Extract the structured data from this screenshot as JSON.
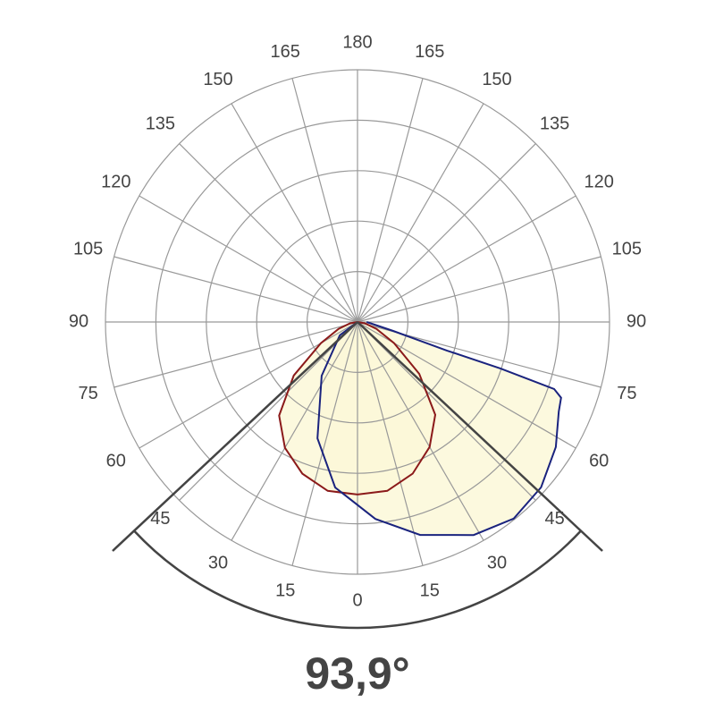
{
  "chart_data": {
    "type": "polar",
    "rlim": [
      0,
      5
    ],
    "rticks": [
      1,
      2,
      3,
      4,
      5
    ],
    "thetaticks": [
      0,
      15,
      30,
      45,
      60,
      75,
      90,
      105,
      120,
      135,
      150,
      165,
      180
    ],
    "grid": true,
    "fill_color": "#fbf8d8",
    "beam_angle": {
      "value": 93.9,
      "label": "93,9°"
    },
    "series": [
      {
        "color": "#8b1a1a",
        "theta": [
          -90,
          -80,
          -70,
          -60,
          -50,
          -40,
          -30,
          -20,
          -10,
          0,
          10,
          20,
          30,
          40,
          50,
          60,
          70,
          80,
          90
        ],
        "values": [
          0,
          0.15,
          0.4,
          0.84,
          1.65,
          2.42,
          2.88,
          3.2,
          3.4,
          3.42,
          3.4,
          3.2,
          2.86,
          2.4,
          1.6,
          0.84,
          0.4,
          0.15,
          0
        ]
      },
      {
        "color": "#1a237e",
        "theta": [
          -90,
          -53,
          -33.7,
          -19,
          -7.7,
          5.2,
          16.4,
          28.6,
          38.5,
          48,
          57.8,
          66,
          69.6,
          71.2,
          72,
          72.3,
          76,
          90
        ],
        "values": [
          0,
          0.44,
          1.28,
          2.44,
          3.31,
          3.92,
          4.4,
          4.81,
          4.98,
          4.9,
          4.65,
          4.37,
          4.31,
          4.12,
          2.98,
          1.86,
          0.73,
          0.18
        ]
      }
    ]
  }
}
